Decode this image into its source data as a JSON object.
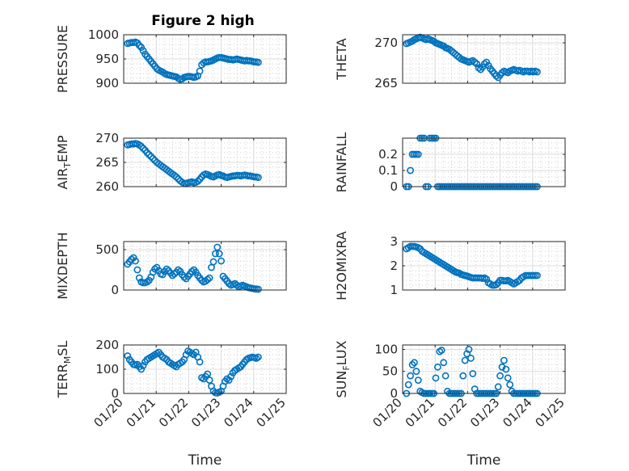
{
  "figure": {
    "title": "Figure 2 high"
  },
  "colors": {
    "marker": "#0072BD",
    "axis": "#262626",
    "grid": "#dcdcdc"
  },
  "chart_data": [
    {
      "type": "scatter",
      "panel": "top-left",
      "ylabel": "PRESSURE",
      "title": "Figure 2 high",
      "xlim": [
        0,
        5
      ],
      "ylim": [
        900,
        1000
      ],
      "yticks": [
        900,
        950,
        1000
      ],
      "ytick_labels": [
        "900",
        "950",
        "1000"
      ],
      "xticks": [
        0,
        1,
        2,
        3,
        4,
        5
      ],
      "xtick_labels": [],
      "x": [
        0.12,
        0.18,
        0.24,
        0.3,
        0.36,
        0.42,
        0.48,
        0.54,
        0.6,
        0.66,
        0.72,
        0.78,
        0.84,
        0.9,
        0.96,
        1.02,
        1.08,
        1.14,
        1.2,
        1.26,
        1.32,
        1.38,
        1.44,
        1.5,
        1.56,
        1.62,
        1.68,
        1.74,
        1.8,
        1.86,
        1.92,
        1.98,
        2.04,
        2.1,
        2.16,
        2.22,
        2.28,
        2.34,
        2.4,
        2.46,
        2.52,
        2.58,
        2.64,
        2.7,
        2.76,
        2.82,
        2.88,
        2.94,
        3.0,
        3.06,
        3.12,
        3.18,
        3.24,
        3.3,
        3.36,
        3.42,
        3.48,
        3.54,
        3.6,
        3.66,
        3.72,
        3.78,
        3.84,
        3.9,
        3.96,
        4.02,
        4.08,
        4.14
      ],
      "y": [
        982,
        983,
        984,
        984,
        985,
        983,
        978,
        974,
        967,
        960,
        955,
        950,
        945,
        940,
        935,
        930,
        927,
        925,
        923,
        920,
        918,
        917,
        916,
        915,
        914,
        913,
        910,
        908,
        909,
        912,
        913,
        914,
        914,
        913,
        912,
        913,
        915,
        925,
        938,
        942,
        944,
        944,
        945,
        946,
        948,
        950,
        952,
        953,
        953,
        952,
        951,
        950,
        949,
        949,
        948,
        949,
        950,
        949,
        948,
        947,
        946,
        947,
        946,
        946,
        945,
        944,
        944,
        943
      ]
    },
    {
      "type": "scatter",
      "panel": "top-right",
      "ylabel": "THETA",
      "xlim": [
        0,
        5
      ],
      "ylim": [
        265,
        271
      ],
      "yticks": [
        265,
        270
      ],
      "ytick_labels": [
        "265",
        "270"
      ],
      "xticks": [
        0,
        1,
        2,
        3,
        4,
        5
      ],
      "xtick_labels": [],
      "x": [
        0.12,
        0.18,
        0.24,
        0.3,
        0.36,
        0.42,
        0.48,
        0.54,
        0.6,
        0.66,
        0.72,
        0.78,
        0.84,
        0.9,
        0.96,
        1.02,
        1.08,
        1.14,
        1.2,
        1.26,
        1.32,
        1.38,
        1.44,
        1.5,
        1.56,
        1.62,
        1.68,
        1.74,
        1.8,
        1.86,
        1.92,
        1.98,
        2.04,
        2.1,
        2.16,
        2.22,
        2.28,
        2.34,
        2.4,
        2.46,
        2.52,
        2.58,
        2.64,
        2.7,
        2.76,
        2.82,
        2.88,
        2.94,
        3.0,
        3.06,
        3.12,
        3.18,
        3.24,
        3.3,
        3.36,
        3.42,
        3.48,
        3.54,
        3.6,
        3.66,
        3.72,
        3.78,
        3.84,
        3.9,
        3.96,
        4.02,
        4.08,
        4.14
      ],
      "y": [
        269.9,
        270.0,
        270.1,
        270.2,
        270.4,
        270.5,
        270.6,
        270.7,
        270.6,
        270.5,
        270.4,
        270.5,
        270.4,
        270.3,
        270.2,
        270.0,
        269.9,
        269.8,
        269.7,
        269.6,
        269.4,
        269.3,
        269.2,
        269.0,
        268.8,
        268.6,
        268.4,
        268.2,
        268.0,
        267.9,
        267.8,
        267.7,
        267.6,
        267.7,
        267.8,
        267.6,
        267.4,
        266.9,
        266.7,
        267.0,
        267.4,
        267.6,
        267.2,
        266.8,
        266.5,
        266.2,
        265.9,
        265.7,
        266.0,
        266.3,
        266.5,
        266.4,
        266.3,
        266.5,
        266.6,
        266.7,
        266.6,
        266.5,
        266.6,
        266.5,
        266.4,
        266.5,
        266.5,
        266.4,
        266.5,
        266.4,
        266.5,
        266.4
      ]
    },
    {
      "type": "scatter",
      "panel": "middle-left",
      "ylabel": "AIR_TEMP",
      "xlim": [
        0,
        5
      ],
      "ylim": [
        260,
        270
      ],
      "yticks": [
        260,
        265,
        270
      ],
      "ytick_labels": [
        "260",
        "265",
        "270"
      ],
      "xticks": [
        0,
        1,
        2,
        3,
        4,
        5
      ],
      "xtick_labels": [],
      "x": [
        0.12,
        0.18,
        0.24,
        0.3,
        0.36,
        0.42,
        0.48,
        0.54,
        0.6,
        0.66,
        0.72,
        0.78,
        0.84,
        0.9,
        0.96,
        1.02,
        1.08,
        1.14,
        1.2,
        1.26,
        1.32,
        1.38,
        1.44,
        1.5,
        1.56,
        1.62,
        1.68,
        1.74,
        1.8,
        1.86,
        1.92,
        1.98,
        2.04,
        2.1,
        2.16,
        2.22,
        2.28,
        2.34,
        2.4,
        2.46,
        2.52,
        2.58,
        2.64,
        2.7,
        2.76,
        2.82,
        2.88,
        2.94,
        3.0,
        3.06,
        3.12,
        3.18,
        3.24,
        3.3,
        3.36,
        3.42,
        3.48,
        3.54,
        3.6,
        3.66,
        3.72,
        3.78,
        3.84,
        3.9,
        3.96,
        4.02,
        4.08,
        4.14
      ],
      "y": [
        268.6,
        268.7,
        268.8,
        268.8,
        268.9,
        268.8,
        268.6,
        268.3,
        267.9,
        267.5,
        267.0,
        266.6,
        266.2,
        265.8,
        265.4,
        265.0,
        264.7,
        264.4,
        264.1,
        263.8,
        263.5,
        263.2,
        262.9,
        262.6,
        262.3,
        262.0,
        261.6,
        261.2,
        260.9,
        260.7,
        260.6,
        260.8,
        260.9,
        261.0,
        260.8,
        260.9,
        261.1,
        261.5,
        262.0,
        262.4,
        262.6,
        262.5,
        262.3,
        262.1,
        262.0,
        262.2,
        262.4,
        262.5,
        262.3,
        262.2,
        262.0,
        261.9,
        262.0,
        262.1,
        262.2,
        262.2,
        262.3,
        262.3,
        262.2,
        262.3,
        262.4,
        262.3,
        262.2,
        262.2,
        262.1,
        262.0,
        262.0,
        261.9
      ]
    },
    {
      "type": "scatter",
      "panel": "middle-right",
      "ylabel": "RAINFALL",
      "xlim": [
        0,
        5
      ],
      "ylim": [
        0,
        0.3
      ],
      "yticks": [
        0,
        0.1,
        0.2
      ],
      "ytick_labels": [
        "0",
        "0.1",
        "0.2"
      ],
      "xticks": [
        0,
        1,
        2,
        3,
        4,
        5
      ],
      "xtick_labels": [],
      "x": [
        0.12,
        0.18,
        0.24,
        0.3,
        0.36,
        0.42,
        0.48,
        0.54,
        0.6,
        0.66,
        0.72,
        0.78,
        0.84,
        0.9,
        0.96,
        1.02,
        1.08,
        1.14,
        1.2,
        1.26,
        1.32,
        1.38,
        1.44,
        1.5,
        1.56,
        1.62,
        1.68,
        1.74,
        1.8,
        1.86,
        1.92,
        1.98,
        2.04,
        2.1,
        2.16,
        2.22,
        2.28,
        2.34,
        2.4,
        2.46,
        2.52,
        2.58,
        2.64,
        2.7,
        2.76,
        2.82,
        2.88,
        2.94,
        3.0,
        3.06,
        3.12,
        3.18,
        3.24,
        3.3,
        3.36,
        3.42,
        3.48,
        3.54,
        3.6,
        3.66,
        3.72,
        3.78,
        3.84,
        3.9,
        3.96,
        4.02,
        4.08,
        4.14
      ],
      "y": [
        0,
        0,
        0.1,
        0.2,
        0.2,
        0.2,
        0.2,
        0.3,
        0.3,
        0.3,
        0,
        0,
        0.3,
        0.3,
        0.3,
        0.3,
        0,
        0,
        0,
        0,
        0,
        0,
        0,
        0,
        0,
        0,
        0,
        0,
        0,
        0,
        0,
        0,
        0,
        0,
        0,
        0,
        0,
        0,
        0,
        0,
        0,
        0,
        0,
        0,
        0,
        0,
        0,
        0,
        0,
        0,
        0,
        0,
        0,
        0,
        0,
        0,
        0,
        0,
        0,
        0,
        0,
        0,
        0,
        0,
        0,
        0,
        0,
        0
      ]
    },
    {
      "type": "scatter",
      "panel": "lower-left",
      "ylabel": "MIXDEPTH",
      "xlim": [
        0,
        5
      ],
      "ylim": [
        0,
        600
      ],
      "yticks": [
        0,
        500
      ],
      "ytick_labels": [
        "0",
        "500"
      ],
      "xticks": [
        0,
        1,
        2,
        3,
        4,
        5
      ],
      "xtick_labels": [],
      "x": [
        0.12,
        0.18,
        0.24,
        0.3,
        0.36,
        0.42,
        0.48,
        0.54,
        0.6,
        0.66,
        0.72,
        0.78,
        0.84,
        0.9,
        0.96,
        1.02,
        1.08,
        1.14,
        1.2,
        1.26,
        1.32,
        1.38,
        1.44,
        1.5,
        1.56,
        1.62,
        1.68,
        1.74,
        1.8,
        1.86,
        1.92,
        1.98,
        2.04,
        2.1,
        2.16,
        2.22,
        2.28,
        2.34,
        2.4,
        2.46,
        2.52,
        2.58,
        2.64,
        2.7,
        2.76,
        2.82,
        2.88,
        2.94,
        3.0,
        3.06,
        3.12,
        3.18,
        3.24,
        3.3,
        3.36,
        3.42,
        3.48,
        3.54,
        3.6,
        3.66,
        3.72,
        3.78,
        3.84,
        3.9,
        3.96,
        4.02,
        4.08,
        4.14
      ],
      "y": [
        320,
        350,
        380,
        400,
        360,
        250,
        150,
        100,
        90,
        90,
        100,
        120,
        160,
        220,
        260,
        280,
        240,
        200,
        190,
        230,
        260,
        240,
        210,
        180,
        200,
        220,
        250,
        230,
        190,
        160,
        140,
        170,
        200,
        230,
        250,
        220,
        180,
        150,
        120,
        100,
        110,
        130,
        150,
        280,
        350,
        450,
        530,
        450,
        360,
        170,
        140,
        110,
        80,
        60,
        70,
        80,
        60,
        40,
        50,
        60,
        50,
        40,
        30,
        25,
        20,
        15,
        12,
        10
      ]
    },
    {
      "type": "scatter",
      "panel": "lower-right",
      "ylabel": "H2OMIXRA",
      "xlim": [
        0,
        5
      ],
      "ylim": [
        1,
        3
      ],
      "yticks": [
        1,
        2,
        3
      ],
      "ytick_labels": [
        "1",
        "2",
        "3"
      ],
      "xticks": [
        0,
        1,
        2,
        3,
        4,
        5
      ],
      "xtick_labels": [],
      "x": [
        0.12,
        0.18,
        0.24,
        0.3,
        0.36,
        0.42,
        0.48,
        0.54,
        0.6,
        0.66,
        0.72,
        0.78,
        0.84,
        0.9,
        0.96,
        1.02,
        1.08,
        1.14,
        1.2,
        1.26,
        1.32,
        1.38,
        1.44,
        1.5,
        1.56,
        1.62,
        1.68,
        1.74,
        1.8,
        1.86,
        1.92,
        1.98,
        2.04,
        2.1,
        2.16,
        2.22,
        2.28,
        2.34,
        2.4,
        2.46,
        2.52,
        2.58,
        2.64,
        2.7,
        2.76,
        2.82,
        2.88,
        2.94,
        3.0,
        3.06,
        3.12,
        3.18,
        3.24,
        3.3,
        3.36,
        3.42,
        3.48,
        3.54,
        3.6,
        3.66,
        3.72,
        3.78,
        3.84,
        3.9,
        3.96,
        4.02,
        4.08,
        4.14
      ],
      "y": [
        2.7,
        2.75,
        2.8,
        2.8,
        2.8,
        2.78,
        2.75,
        2.7,
        2.6,
        2.55,
        2.5,
        2.45,
        2.4,
        2.35,
        2.3,
        2.25,
        2.2,
        2.15,
        2.1,
        2.05,
        2.0,
        1.95,
        1.9,
        1.85,
        1.8,
        1.75,
        1.72,
        1.7,
        1.65,
        1.62,
        1.6,
        1.58,
        1.55,
        1.52,
        1.5,
        1.5,
        1.5,
        1.5,
        1.5,
        1.48,
        1.5,
        1.45,
        1.3,
        1.25,
        1.2,
        1.2,
        1.22,
        1.3,
        1.4,
        1.4,
        1.38,
        1.38,
        1.4,
        1.35,
        1.3,
        1.25,
        1.3,
        1.35,
        1.4,
        1.5,
        1.55,
        1.6,
        1.6,
        1.6,
        1.6,
        1.6,
        1.6,
        1.6
      ]
    },
    {
      "type": "scatter",
      "panel": "bottom-left",
      "ylabel": "TERR_MSL",
      "xlim": [
        0,
        5
      ],
      "ylim": [
        0,
        200
      ],
      "yticks": [
        0,
        100,
        200
      ],
      "ytick_labels": [
        "0",
        "100",
        "200"
      ],
      "xticks": [
        0,
        1,
        2,
        3,
        4,
        5
      ],
      "xtick_labels": [
        "01/20",
        "01/21",
        "01/22",
        "01/23",
        "01/24",
        "01/25"
      ],
      "xlabel": "Time",
      "x": [
        0.12,
        0.18,
        0.24,
        0.3,
        0.36,
        0.42,
        0.48,
        0.54,
        0.6,
        0.66,
        0.72,
        0.78,
        0.84,
        0.9,
        0.96,
        1.02,
        1.08,
        1.14,
        1.2,
        1.26,
        1.32,
        1.38,
        1.44,
        1.5,
        1.56,
        1.62,
        1.68,
        1.74,
        1.8,
        1.86,
        1.92,
        1.98,
        2.04,
        2.1,
        2.16,
        2.22,
        2.28,
        2.34,
        2.4,
        2.46,
        2.52,
        2.58,
        2.64,
        2.7,
        2.76,
        2.82,
        2.88,
        2.94,
        3.0,
        3.06,
        3.12,
        3.18,
        3.24,
        3.3,
        3.36,
        3.42,
        3.48,
        3.54,
        3.6,
        3.66,
        3.72,
        3.78,
        3.84,
        3.9,
        3.96,
        4.02,
        4.08,
        4.14
      ],
      "y": [
        155,
        140,
        130,
        120,
        118,
        120,
        110,
        100,
        115,
        130,
        140,
        145,
        150,
        155,
        160,
        165,
        170,
        160,
        150,
        145,
        140,
        130,
        125,
        120,
        115,
        110,
        120,
        125,
        130,
        140,
        160,
        175,
        170,
        165,
        160,
        170,
        150,
        130,
        65,
        60,
        70,
        80,
        55,
        30,
        10,
        3,
        2,
        5,
        10,
        30,
        50,
        60,
        55,
        70,
        85,
        95,
        100,
        105,
        110,
        120,
        130,
        140,
        145,
        148,
        150,
        148,
        145,
        150
      ]
    },
    {
      "type": "scatter",
      "panel": "bottom-right",
      "ylabel": "SUN_FLUX",
      "xlim": [
        0,
        5
      ],
      "ylim": [
        0,
        110
      ],
      "yticks": [
        0,
        50,
        100
      ],
      "ytick_labels": [
        "0",
        "50",
        "100"
      ],
      "xticks": [
        0,
        1,
        2,
        3,
        4,
        5
      ],
      "xtick_labels": [
        "01/20",
        "01/21",
        "01/22",
        "01/23",
        "01/24",
        "01/25"
      ],
      "xlabel": "Time",
      "x": [
        0.12,
        0.18,
        0.24,
        0.3,
        0.36,
        0.42,
        0.48,
        0.54,
        0.6,
        0.66,
        0.72,
        0.78,
        0.84,
        0.9,
        0.96,
        1.02,
        1.08,
        1.14,
        1.2,
        1.26,
        1.32,
        1.38,
        1.44,
        1.5,
        1.56,
        1.62,
        1.68,
        1.74,
        1.8,
        1.86,
        1.92,
        1.98,
        2.04,
        2.1,
        2.16,
        2.22,
        2.28,
        2.34,
        2.4,
        2.46,
        2.52,
        2.58,
        2.64,
        2.7,
        2.76,
        2.82,
        2.88,
        2.94,
        3.0,
        3.06,
        3.12,
        3.18,
        3.24,
        3.3,
        3.36,
        3.42,
        3.48,
        3.54,
        3.6,
        3.66,
        3.72,
        3.78,
        3.84,
        3.9,
        3.96,
        4.02,
        4.08,
        4.14
      ],
      "y": [
        0,
        20,
        40,
        65,
        70,
        50,
        30,
        5,
        2,
        0,
        0,
        0,
        0,
        0,
        0,
        35,
        60,
        95,
        98,
        70,
        40,
        5,
        0,
        0,
        0,
        0,
        0,
        0,
        0,
        40,
        75,
        90,
        100,
        80,
        45,
        10,
        0,
        0,
        0,
        0,
        0,
        0,
        0,
        0,
        0,
        0,
        0,
        15,
        40,
        60,
        75,
        55,
        35,
        20,
        5,
        0,
        0,
        0,
        0,
        0,
        0,
        0,
        0,
        0,
        0,
        0,
        0,
        0
      ]
    }
  ]
}
